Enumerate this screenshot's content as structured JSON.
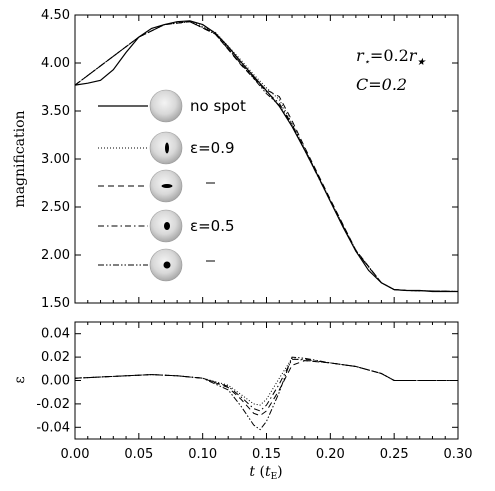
{
  "chart_data": [
    {
      "type": "line",
      "panel": "top",
      "ylabel": "magnification",
      "xlim": [
        0.0,
        0.3
      ],
      "ylim": [
        1.5,
        4.5
      ],
      "yticks": [
        "1.50",
        "2.00",
        "2.50",
        "3.00",
        "3.50",
        "4.00",
        "4.50"
      ],
      "annotation_lines": [
        "r⋆=0.2r★",
        "C=0.2"
      ],
      "legend_placement": "left",
      "series": [
        {
          "name": "no spot",
          "style": "solid",
          "x": [
            0.0,
            0.01,
            0.02,
            0.03,
            0.04,
            0.05,
            0.06,
            0.07,
            0.08,
            0.09,
            0.1,
            0.11,
            0.12,
            0.13,
            0.14,
            0.15,
            0.16,
            0.17,
            0.18,
            0.19,
            0.2,
            0.21,
            0.22,
            0.23,
            0.24,
            0.25,
            0.26,
            0.27,
            0.28,
            0.29,
            0.3
          ],
          "y": [
            3.77,
            3.79,
            3.82,
            3.93,
            4.11,
            4.27,
            4.36,
            4.4,
            4.43,
            4.44,
            4.4,
            4.31,
            4.17,
            4.01,
            3.86,
            3.71,
            3.55,
            3.34,
            3.09,
            2.83,
            2.56,
            2.29,
            2.04,
            1.84,
            1.71,
            1.64,
            1.63,
            1.63,
            1.62,
            1.62,
            1.62
          ]
        },
        {
          "name": "ε=0.9",
          "style": "dotted",
          "x": [
            0.0,
            0.05,
            0.07,
            0.09,
            0.11,
            0.13,
            0.14,
            0.15,
            0.16,
            0.17,
            0.18,
            0.2,
            0.22,
            0.24,
            0.25,
            0.26,
            0.3
          ],
          "y": [
            3.77,
            4.27,
            4.4,
            4.44,
            4.32,
            4.03,
            3.88,
            3.74,
            3.62,
            3.37,
            3.11,
            2.57,
            2.05,
            1.71,
            1.64,
            1.63,
            1.62
          ]
        },
        {
          "name": "",
          "style": "dashed",
          "x": [
            0.0,
            0.05,
            0.07,
            0.09,
            0.11,
            0.13,
            0.14,
            0.15,
            0.16,
            0.17,
            0.18,
            0.2,
            0.22,
            0.24,
            0.25,
            0.26,
            0.3
          ],
          "y": [
            3.77,
            4.27,
            4.4,
            4.43,
            4.3,
            3.98,
            3.84,
            3.72,
            3.65,
            3.4,
            3.12,
            2.58,
            2.05,
            1.71,
            1.64,
            1.63,
            1.62
          ]
        },
        {
          "name": "ε=0.5",
          "style": "dashdot",
          "x": [
            0.0,
            0.05,
            0.07,
            0.09,
            0.11,
            0.13,
            0.14,
            0.15,
            0.16,
            0.17,
            0.18,
            0.2,
            0.22,
            0.24,
            0.25,
            0.26,
            0.3
          ],
          "y": [
            3.77,
            4.27,
            4.4,
            4.43,
            4.3,
            3.99,
            3.85,
            3.7,
            3.58,
            3.36,
            3.1,
            2.56,
            2.04,
            1.71,
            1.64,
            1.63,
            1.62
          ]
        },
        {
          "name": "",
          "style": "dashdotdot",
          "x": [
            0.0,
            0.05,
            0.07,
            0.09,
            0.11,
            0.13,
            0.14,
            0.15,
            0.16,
            0.17,
            0.18,
            0.2,
            0.22,
            0.24,
            0.25,
            0.26,
            0.3
          ],
          "y": [
            3.77,
            4.27,
            4.4,
            4.43,
            4.31,
            3.99,
            3.84,
            3.68,
            3.56,
            3.35,
            3.09,
            2.56,
            2.04,
            1.71,
            1.64,
            1.63,
            1.62
          ]
        }
      ]
    },
    {
      "type": "line",
      "panel": "bottom",
      "xlabel": "t (t_E)",
      "ylabel": "ε",
      "xlim": [
        0.0,
        0.3
      ],
      "ylim": [
        -0.05,
        0.05
      ],
      "xticks": [
        "0.00",
        "0.05",
        "0.10",
        "0.15",
        "0.20",
        "0.25",
        "0.30"
      ],
      "yticks": [
        "-0.04",
        "-0.02",
        "0.00",
        "0.02",
        "0.04"
      ],
      "series": [
        {
          "name": "ε=0.9",
          "style": "dotted",
          "x": [
            0.0,
            0.02,
            0.04,
            0.06,
            0.08,
            0.1,
            0.12,
            0.13,
            0.14,
            0.145,
            0.15,
            0.16,
            0.17,
            0.18,
            0.2,
            0.22,
            0.24,
            0.25,
            0.26,
            0.3
          ],
          "y": [
            0.002,
            0.003,
            0.004,
            0.005,
            0.004,
            0.002,
            -0.004,
            -0.012,
            -0.02,
            -0.021,
            -0.016,
            0.002,
            0.019,
            0.017,
            0.015,
            0.012,
            0.006,
            0.0,
            0.0,
            0.0
          ]
        },
        {
          "name": "",
          "style": "dashed",
          "x": [
            0.0,
            0.02,
            0.04,
            0.06,
            0.08,
            0.1,
            0.12,
            0.13,
            0.14,
            0.145,
            0.15,
            0.16,
            0.17,
            0.18,
            0.2,
            0.22,
            0.24,
            0.25,
            0.26,
            0.3
          ],
          "y": [
            0.002,
            0.003,
            0.004,
            0.005,
            0.004,
            0.002,
            -0.006,
            -0.016,
            -0.028,
            -0.03,
            -0.026,
            -0.008,
            0.013,
            0.017,
            0.015,
            0.012,
            0.006,
            0.0,
            0.0,
            0.0
          ]
        },
        {
          "name": "ε=0.5",
          "style": "dashdot",
          "x": [
            0.0,
            0.02,
            0.04,
            0.06,
            0.08,
            0.1,
            0.12,
            0.13,
            0.14,
            0.145,
            0.15,
            0.16,
            0.17,
            0.18,
            0.2,
            0.22,
            0.24,
            0.25,
            0.26,
            0.3
          ],
          "y": [
            0.002,
            0.003,
            0.004,
            0.005,
            0.004,
            0.002,
            -0.005,
            -0.014,
            -0.024,
            -0.026,
            -0.021,
            -0.003,
            0.018,
            0.018,
            0.015,
            0.012,
            0.006,
            0.0,
            0.0,
            0.0
          ]
        },
        {
          "name": "",
          "style": "dashdotdot",
          "x": [
            0.0,
            0.02,
            0.04,
            0.06,
            0.08,
            0.1,
            0.12,
            0.13,
            0.14,
            0.145,
            0.15,
            0.16,
            0.17,
            0.18,
            0.2,
            0.22,
            0.24,
            0.25,
            0.26,
            0.3
          ],
          "y": [
            0.002,
            0.003,
            0.004,
            0.005,
            0.004,
            0.002,
            -0.008,
            -0.022,
            -0.038,
            -0.042,
            -0.035,
            -0.01,
            0.02,
            0.019,
            0.015,
            0.012,
            0.006,
            0.0,
            0.0,
            0.0
          ]
        }
      ]
    }
  ]
}
